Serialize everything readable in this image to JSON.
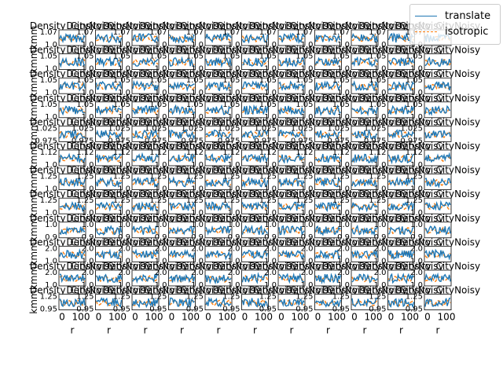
{
  "chart_data": {
    "type": "line",
    "layout": "small-multiples grid, 12 rows x 11 columns, overlapping titles and tick labels",
    "panel_title_fragment": "Density_CityNoisy",
    "panel_ylabel": "kmm",
    "panel_xlabel": "r",
    "x_ticks": [
      "0",
      "100"
    ],
    "xlim": [
      0,
      150
    ],
    "series": [
      {
        "name": "translate",
        "color": "#1f77b4",
        "style": "solid"
      },
      {
        "name": "isotropic",
        "color": "#ff7f0e",
        "style": "dashed"
      }
    ],
    "row_ylim": [
      [
        1.0,
        1.07
      ],
      [
        1.0,
        1.05
      ],
      [
        1.0,
        1.05
      ],
      [
        1.0,
        1.05
      ],
      [
        0.975,
        1.025
      ],
      [
        1.0,
        1.12
      ],
      [
        1.0,
        1.25
      ],
      [
        1.0,
        1.25
      ],
      [
        0.9,
        1.0
      ],
      [
        1.0,
        2.0
      ],
      [
        1.0,
        2.0
      ],
      [
        0.95,
        1.25
      ]
    ],
    "visible_tick_labels": [
      "1.05",
      "1.00",
      "1.25",
      "1.0",
      "1.5",
      "2",
      "1.2",
      "1.1",
      "0.95",
      "0.9",
      "0.75",
      "1.025",
      "0.975",
      "2.5",
      "0.5"
    ],
    "legend": {
      "position": "top-right",
      "entries": [
        "translate",
        "isotropic"
      ]
    }
  }
}
